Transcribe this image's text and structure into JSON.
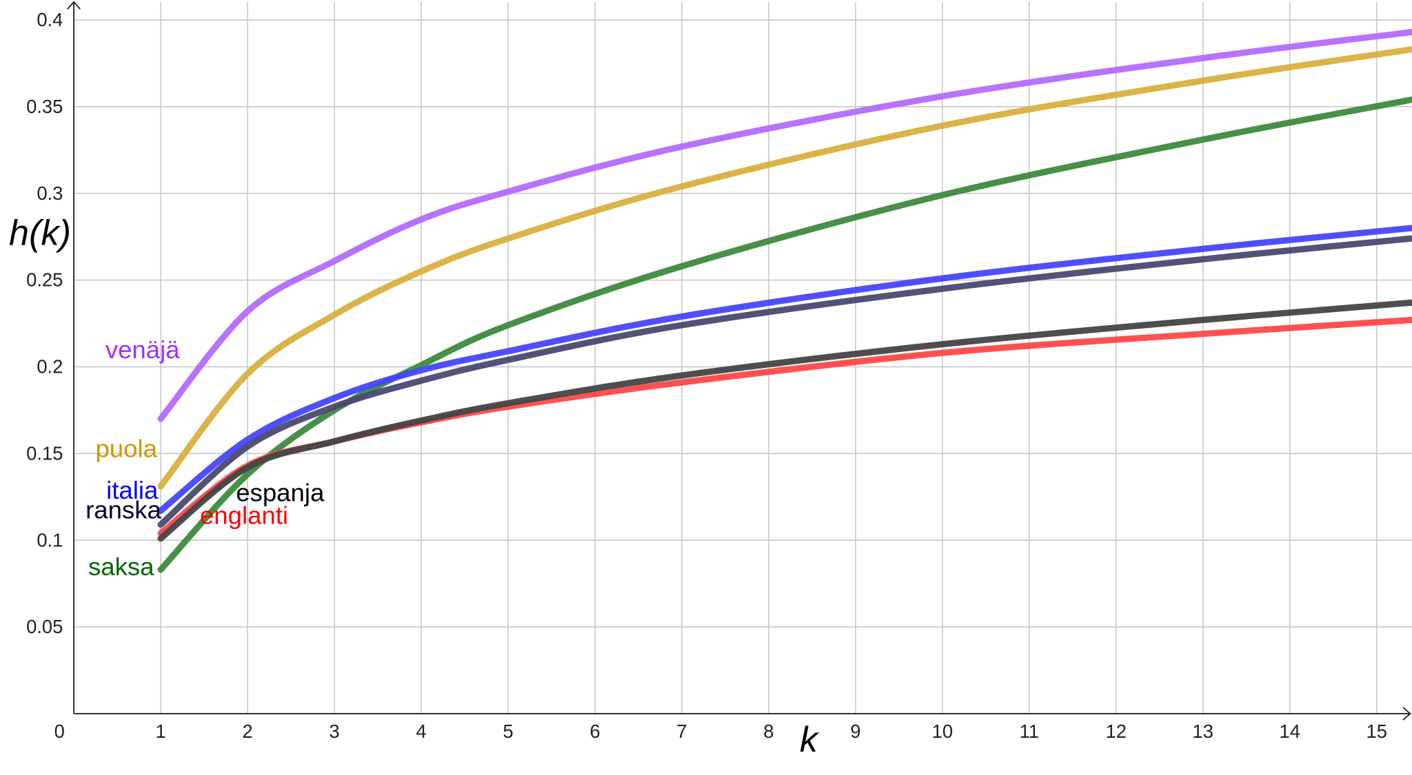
{
  "chart_data": {
    "type": "line",
    "title": "",
    "xlabel": "k",
    "ylabel": "h(k)",
    "xlim": [
      0,
      15.4
    ],
    "ylim": [
      0,
      0.4
    ],
    "grid": true,
    "legend": "inline labels near curve starts",
    "x_ticks": [
      "0",
      "1",
      "2",
      "3",
      "4",
      "5",
      "6",
      "7",
      "8",
      "9",
      "10",
      "11",
      "12",
      "13",
      "14",
      "15"
    ],
    "y_ticks": [
      "0.05",
      "0.1",
      "0.15",
      "0.2",
      "0.25",
      "0.3",
      "0.35",
      "0.4"
    ],
    "x": [
      1,
      2,
      3,
      4,
      5,
      7,
      10,
      13,
      15.4
    ],
    "series": [
      {
        "name": "venäjä",
        "color": "#b36bff",
        "label_color": "#9933ff",
        "values": [
          0.17,
          0.232,
          0.261,
          0.285,
          0.301,
          0.327,
          0.356,
          0.378,
          0.393
        ]
      },
      {
        "name": "puola",
        "color": "#d9b03f",
        "label_color": "#cc9900",
        "values": [
          0.131,
          0.196,
          0.23,
          0.255,
          0.274,
          0.304,
          0.339,
          0.365,
          0.383
        ]
      },
      {
        "name": "saksa",
        "color": "#3d8a3d",
        "label_color": "#006600",
        "values": [
          0.083,
          0.138,
          0.175,
          0.201,
          0.224,
          0.258,
          0.299,
          0.331,
          0.354
        ]
      },
      {
        "name": "italia",
        "color": "#4646ff",
        "label_color": "#0000ff",
        "values": [
          0.117,
          0.158,
          0.182,
          0.198,
          0.209,
          0.229,
          0.251,
          0.268,
          0.28
        ]
      },
      {
        "name": "ranska",
        "color": "#4a4a70",
        "label_color": "#000033",
        "values": [
          0.109,
          0.154,
          0.177,
          0.192,
          0.204,
          0.224,
          0.245,
          0.262,
          0.274
        ]
      },
      {
        "name": "englanti",
        "color": "#ff4848",
        "label_color": "#ff0000",
        "values": [
          0.104,
          0.143,
          0.157,
          0.168,
          0.177,
          0.191,
          0.208,
          0.219,
          0.227
        ]
      },
      {
        "name": "espanja",
        "color": "#444444",
        "label_color": "#000000",
        "values": [
          0.101,
          0.142,
          0.157,
          0.169,
          0.179,
          0.195,
          0.213,
          0.227,
          0.237
        ]
      }
    ]
  }
}
